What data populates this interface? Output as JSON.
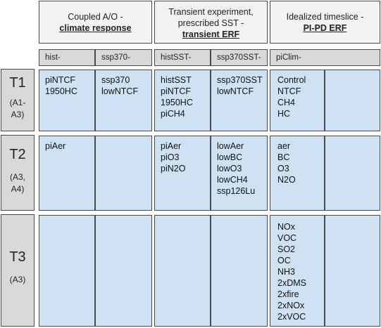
{
  "headers": {
    "coupled": {
      "line1": "Coupled A/O -",
      "line2": "climate response"
    },
    "transient": {
      "line1": "Transient experiment,",
      "line2": "prescribed SST -",
      "line3": "transient ERF"
    },
    "idealized": {
      "line1": "Idealized timeslice -",
      "line2": "PI-PD ERF"
    }
  },
  "subheaders": [
    "hist-",
    "ssp370-",
    "histSST-",
    "ssp370SST-",
    "piClim-"
  ],
  "rows": [
    {
      "tier": "T1",
      "label_lines": [
        "(A1-",
        "A3)"
      ],
      "cells": [
        [
          "piNTCF",
          "1950HC"
        ],
        [
          "ssp370",
          "lowNTCF"
        ],
        [
          "histSST",
          "piNTCF",
          "1950HC",
          "piCH4"
        ],
        [
          "ssp370SST",
          "lowNTCF"
        ],
        [
          "Control",
          "NTCF",
          "CH4",
          "HC"
        ],
        []
      ]
    },
    {
      "tier": "T2",
      "label_lines": [
        "(A3,",
        "A4)"
      ],
      "cells": [
        [
          "piAer"
        ],
        [],
        [
          "piAer",
          "piO3",
          "piN2O"
        ],
        [
          "lowAer",
          "lowBC",
          "lowO3",
          "lowCH4",
          "ssp126Lu"
        ],
        [
          "aer",
          "BC",
          "O3",
          "N2O"
        ],
        []
      ]
    },
    {
      "tier": "T3",
      "label_lines": [
        "(A3)"
      ],
      "cells": [
        [],
        [],
        [],
        [],
        [
          "NOx",
          "VOC",
          "SO2",
          "OC",
          "NH3",
          "2xDMS",
          "2xfire",
          "2xNOx",
          "2xVOC"
        ],
        []
      ]
    }
  ]
}
